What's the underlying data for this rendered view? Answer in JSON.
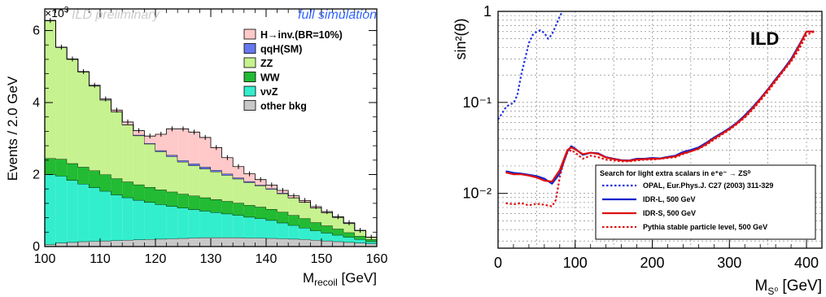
{
  "chart_data": [
    {
      "type": "bar",
      "stacked": true,
      "title": "",
      "watermark_left": "ILD preliminary",
      "watermark_right": "full simulation",
      "xlabel": "M",
      "xlabel_sub": "recoil",
      "xlabel_unit": " [GeV]",
      "ylabel": "Events / 2.0 GeV",
      "y_exponent_base": "×10",
      "y_exponent": "3",
      "xlim": [
        100,
        160
      ],
      "ylim": [
        0,
        6.6
      ],
      "xticks": [
        "100",
        "110",
        "120",
        "130",
        "140",
        "150",
        "160"
      ],
      "yticks": [
        "0",
        "2",
        "4",
        "6"
      ],
      "bin_width": 2,
      "x": [
        100,
        102,
        104,
        106,
        108,
        110,
        112,
        114,
        116,
        118,
        120,
        122,
        124,
        126,
        128,
        130,
        132,
        134,
        136,
        138,
        140,
        142,
        144,
        146,
        148,
        150,
        152,
        154,
        156,
        158
      ],
      "legend_position": "top-right",
      "series": [
        {
          "name": "other bkg",
          "color": "#c8c8c8",
          "values": [
            0.06,
            0.1,
            0.12,
            0.14,
            0.15,
            0.16,
            0.17,
            0.18,
            0.19,
            0.2,
            0.21,
            0.22,
            0.23,
            0.24,
            0.25,
            0.25,
            0.25,
            0.25,
            0.24,
            0.24,
            0.23,
            0.22,
            0.21,
            0.2,
            0.18,
            0.16,
            0.14,
            0.12,
            0.1,
            0.08
          ]
        },
        {
          "name": "ννZ",
          "color": "#33eecc",
          "values": [
            1.94,
            1.86,
            1.72,
            1.6,
            1.49,
            1.38,
            1.27,
            1.18,
            1.1,
            1.03,
            0.96,
            0.9,
            0.84,
            0.79,
            0.74,
            0.7,
            0.66,
            0.62,
            0.58,
            0.54,
            0.5,
            0.44,
            0.38,
            0.32,
            0.26,
            0.22,
            0.18,
            0.14,
            0.1,
            0.06
          ]
        },
        {
          "name": "WW",
          "color": "#22bb33",
          "values": [
            0.45,
            0.47,
            0.47,
            0.47,
            0.47,
            0.46,
            0.45,
            0.44,
            0.43,
            0.42,
            0.41,
            0.4,
            0.39,
            0.38,
            0.37,
            0.36,
            0.35,
            0.34,
            0.33,
            0.32,
            0.31,
            0.3,
            0.28,
            0.26,
            0.23,
            0.2,
            0.17,
            0.13,
            0.09,
            0.06
          ]
        },
        {
          "name": "ZZ",
          "color": "#c6f28f",
          "values": [
            3.82,
            3.1,
            2.89,
            2.64,
            2.35,
            2.07,
            1.85,
            1.58,
            1.36,
            1.2,
            1.06,
            0.98,
            0.89,
            0.84,
            0.8,
            0.77,
            0.72,
            0.67,
            0.63,
            0.59,
            0.55,
            0.51,
            0.48,
            0.45,
            0.4,
            0.36,
            0.32,
            0.25,
            0.15,
            0.06
          ]
        },
        {
          "name": "qqH(SM)",
          "color": "#6677ee",
          "values": [
            0.01,
            0.01,
            0.01,
            0.01,
            0.01,
            0.01,
            0.01,
            0.01,
            0.02,
            0.02,
            0.03,
            0.04,
            0.04,
            0.05,
            0.05,
            0.04,
            0.04,
            0.03,
            0.03,
            0.02,
            0.02,
            0.02,
            0.01,
            0.01,
            0.01,
            0.01,
            0.01,
            0.01,
            0.01,
            0.0
          ]
        },
        {
          "name": "H→inv.(BR=10%)",
          "color": "#ffc9c9",
          "values": [
            0.0,
            0.0,
            0.0,
            0.0,
            0.01,
            0.02,
            0.04,
            0.07,
            0.12,
            0.2,
            0.45,
            0.73,
            0.88,
            0.88,
            0.82,
            0.63,
            0.45,
            0.31,
            0.21,
            0.15,
            0.1,
            0.07,
            0.05,
            0.04,
            0.03,
            0.02,
            0.01,
            0.01,
            0.0,
            0.0
          ]
        }
      ]
    },
    {
      "type": "line",
      "title": "",
      "badge": "ILD",
      "xlabel": "M",
      "xlabel_sub": "S⁰",
      "xlabel_unit": " [GeV]",
      "ylabel": "sin²(θ)",
      "xlim": [
        0,
        420
      ],
      "ylim": [
        0.0025,
        1
      ],
      "yscale": "log",
      "xticks": [
        "0",
        "100",
        "200",
        "300",
        "400"
      ],
      "yticks": [
        "10⁻²",
        "10⁻¹",
        "1"
      ],
      "ytick_values": [
        0.01,
        0.1,
        1
      ],
      "grid": true,
      "legend_position": "bottom-right",
      "legend_title": "Search for light extra scalars in e⁺e⁻ → ZS⁰",
      "series": [
        {
          "name": "OPAL, Eur.Phys.J. C27 (2003) 311-329",
          "color": "#2233dd",
          "style": "dotted",
          "x": [
            0,
            5,
            10,
            15,
            20,
            25,
            30,
            35,
            40,
            45,
            50,
            55,
            60,
            65,
            70,
            75,
            80,
            85
          ],
          "y": [
            0.065,
            0.075,
            0.088,
            0.095,
            0.098,
            0.12,
            0.2,
            0.3,
            0.45,
            0.55,
            0.6,
            0.62,
            0.58,
            0.5,
            0.56,
            0.7,
            0.88,
            1.05
          ]
        },
        {
          "name": "IDR-L, 500 GeV",
          "color": "#1122cc",
          "style": "solid",
          "x": [
            10,
            20,
            30,
            40,
            50,
            60,
            70,
            80,
            90,
            95,
            100,
            110,
            120,
            130,
            140,
            150,
            160,
            170,
            180,
            190,
            200,
            210,
            220,
            230,
            240,
            250,
            260,
            270,
            280,
            290,
            300,
            310,
            320,
            330,
            340,
            350,
            360,
            370,
            380,
            390,
            400,
            410
          ],
          "y": [
            0.0175,
            0.0168,
            0.0165,
            0.016,
            0.0155,
            0.0145,
            0.0128,
            0.0165,
            0.029,
            0.033,
            0.031,
            0.0265,
            0.028,
            0.0275,
            0.025,
            0.024,
            0.0232,
            0.023,
            0.024,
            0.024,
            0.0245,
            0.0242,
            0.0252,
            0.026,
            0.0285,
            0.03,
            0.032,
            0.036,
            0.041,
            0.046,
            0.052,
            0.06,
            0.072,
            0.088,
            0.11,
            0.14,
            0.18,
            0.23,
            0.3,
            0.42,
            0.6,
            0.6
          ]
        },
        {
          "name": "IDR-S, 500 GeV",
          "color": "#dd1111",
          "style": "solid",
          "x": [
            10,
            20,
            30,
            40,
            50,
            60,
            70,
            80,
            90,
            95,
            100,
            110,
            120,
            130,
            140,
            150,
            160,
            170,
            180,
            190,
            200,
            210,
            220,
            230,
            240,
            250,
            260,
            270,
            280,
            290,
            300,
            310,
            320,
            330,
            340,
            350,
            360,
            370,
            380,
            390,
            400,
            410
          ],
          "y": [
            0.017,
            0.0162,
            0.0162,
            0.0157,
            0.015,
            0.0138,
            0.0135,
            0.018,
            0.03,
            0.032,
            0.0305,
            0.027,
            0.028,
            0.0272,
            0.0248,
            0.0238,
            0.023,
            0.0228,
            0.0236,
            0.0238,
            0.024,
            0.024,
            0.0248,
            0.0255,
            0.0275,
            0.029,
            0.031,
            0.035,
            0.04,
            0.045,
            0.051,
            0.059,
            0.07,
            0.086,
            0.108,
            0.138,
            0.176,
            0.225,
            0.29,
            0.41,
            0.6,
            0.6
          ]
        },
        {
          "name": "Pythia stable particle level, 500 GeV",
          "color": "#dd1111",
          "style": "dotted",
          "x": [
            10,
            20,
            30,
            40,
            50,
            60,
            70,
            75,
            80,
            85,
            90,
            95,
            100,
            110,
            120,
            130,
            140,
            150,
            160,
            170,
            180,
            190,
            200,
            210,
            220,
            230,
            240,
            250,
            260,
            270,
            280,
            290,
            300,
            310,
            320,
            330,
            340,
            350,
            360,
            370,
            380,
            390,
            400,
            410
          ],
          "y": [
            0.0078,
            0.0076,
            0.0078,
            0.0074,
            0.0077,
            0.0075,
            0.0072,
            0.0085,
            0.015,
            0.022,
            0.028,
            0.03,
            0.028,
            0.024,
            0.026,
            0.025,
            0.0235,
            0.023,
            0.0225,
            0.0225,
            0.023,
            0.0235,
            0.0235,
            0.024,
            0.0245,
            0.025,
            0.027,
            0.029,
            0.031,
            0.034,
            0.039,
            0.044,
            0.05,
            0.058,
            0.068,
            0.083,
            0.104,
            0.132,
            0.17,
            0.22,
            0.28,
            0.38,
            0.55,
            0.6
          ]
        }
      ]
    }
  ]
}
